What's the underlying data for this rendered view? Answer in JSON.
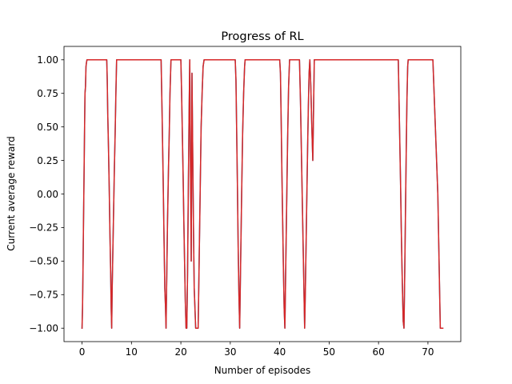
{
  "chart_data": {
    "type": "line",
    "title": "Progress of RL",
    "xlabel": "Number of episodes",
    "ylabel": "Current average reward",
    "xlim": [
      -3.65,
      76.65
    ],
    "ylim": [
      -1.1,
      1.1
    ],
    "grid": false,
    "xticks": [
      {
        "value": 0,
        "label": "0"
      },
      {
        "value": 10,
        "label": "10"
      },
      {
        "value": 20,
        "label": "20"
      },
      {
        "value": 30,
        "label": "30"
      },
      {
        "value": 40,
        "label": "40"
      },
      {
        "value": 50,
        "label": "50"
      },
      {
        "value": 60,
        "label": "60"
      },
      {
        "value": 70,
        "label": "70"
      }
    ],
    "yticks": [
      {
        "value": -1.0,
        "label": "−1.00"
      },
      {
        "value": -0.75,
        "label": "−0.75"
      },
      {
        "value": -0.5,
        "label": "−0.50"
      },
      {
        "value": -0.25,
        "label": "−0.25"
      },
      {
        "value": 0.0,
        "label": "0.00"
      },
      {
        "value": 0.25,
        "label": "0.25"
      },
      {
        "value": 0.5,
        "label": "0.50"
      },
      {
        "value": 0.75,
        "label": "0.75"
      },
      {
        "value": 1.0,
        "label": "1.00"
      }
    ],
    "series": [
      {
        "color": "#1f77b4",
        "x": [
          0,
          0.1,
          0.2,
          0.3,
          0.4,
          0.5,
          0.6,
          0.7,
          0.8,
          0.9,
          1,
          5,
          5.1,
          5.2,
          5.35,
          5.5,
          5.65,
          5.8,
          5.9,
          6,
          6.1,
          6.25,
          6.4,
          6.55,
          6.7,
          6.85,
          7,
          16,
          16.2,
          16.4,
          16.6,
          16.75,
          16.9,
          17,
          17.15,
          17.3,
          17.5,
          17.65,
          17.8,
          18,
          20,
          20.15,
          20.3,
          20.45,
          20.6,
          20.75,
          20.9,
          21.05,
          21.2,
          21.35,
          21.5,
          21.65,
          21.8,
          21.95,
          22.1,
          22.25,
          22.4,
          22.55,
          22.7,
          23,
          23.5,
          23.7,
          23.9,
          24.1,
          24.3,
          24.5,
          24.7,
          25,
          31,
          31.15,
          31.3,
          31.45,
          31.6,
          31.75,
          31.9,
          32.1,
          32.3,
          32.5,
          32.7,
          32.9,
          33,
          40,
          40.15,
          40.3,
          40.45,
          40.6,
          40.75,
          40.9,
          41.05,
          41.2,
          41.4,
          41.6,
          41.8,
          42,
          44,
          44.2,
          44.4,
          44.6,
          44.75,
          44.9,
          45.05,
          45.2,
          45.35,
          45.5,
          45.65,
          45.8,
          45.95,
          46.1,
          46.3,
          46.5,
          46.7,
          47,
          64,
          64.15,
          64.3,
          64.45,
          64.6,
          64.75,
          64.9,
          65,
          65.15,
          65.3,
          65.45,
          65.6,
          65.75,
          65.9,
          66,
          71,
          72,
          72.5,
          73
        ],
        "y": [
          -1,
          -0.85,
          -0.55,
          -0.2,
          0.12,
          0.45,
          0.75,
          0.8,
          0.95,
          0.98,
          1,
          1,
          0.85,
          0.6,
          0.35,
          0.05,
          -0.3,
          -0.6,
          -0.85,
          -1,
          -0.7,
          -0.4,
          -0.1,
          0.2,
          0.45,
          0.75,
          1,
          1,
          0.6,
          0.15,
          -0.35,
          -0.7,
          -0.85,
          -1,
          -0.6,
          -0.2,
          0.2,
          0.45,
          0.75,
          1,
          1,
          0.75,
          0.45,
          0.15,
          -0.2,
          -0.5,
          -0.8,
          -1,
          -1,
          -0.6,
          0.0,
          0.55,
          1,
          0.2,
          -0.5,
          0.9,
          0.3,
          -0.25,
          -0.7,
          -1,
          -1,
          -0.5,
          0.0,
          0.5,
          0.75,
          0.95,
          1,
          1,
          1,
          0.85,
          0.45,
          0.05,
          -0.4,
          -0.75,
          -1,
          -0.5,
          0.0,
          0.45,
          0.75,
          0.95,
          1,
          1,
          0.9,
          0.55,
          0.15,
          -0.2,
          -0.55,
          -0.85,
          -1,
          -0.6,
          -0.1,
          0.4,
          0.8,
          1,
          1,
          0.7,
          0.3,
          -0.1,
          -0.4,
          -0.7,
          -1,
          -0.7,
          -0.35,
          0.0,
          0.35,
          0.65,
          0.9,
          1,
          0.8,
          0.5,
          0.25,
          1,
          1,
          0.7,
          0.4,
          0.1,
          -0.25,
          -0.55,
          -0.8,
          -0.95,
          -1,
          -0.6,
          -0.15,
          0.3,
          0.7,
          0.95,
          1,
          1,
          0.0,
          -1,
          -1
        ],
        "stroke_width": 1.5
      },
      {
        "color": "#d62728",
        "x": [
          0,
          0.1,
          0.2,
          0.3,
          0.4,
          0.5,
          0.6,
          0.7,
          0.8,
          0.9,
          1,
          5,
          5.1,
          5.2,
          5.35,
          5.5,
          5.65,
          5.8,
          5.9,
          6,
          6.1,
          6.25,
          6.4,
          6.55,
          6.7,
          6.85,
          7,
          16,
          16.2,
          16.4,
          16.6,
          16.75,
          16.9,
          17,
          17.15,
          17.3,
          17.5,
          17.65,
          17.8,
          18,
          20,
          20.15,
          20.3,
          20.45,
          20.6,
          20.75,
          20.9,
          21.05,
          21.2,
          21.35,
          21.5,
          21.65,
          21.8,
          21.95,
          22.1,
          22.25,
          22.4,
          22.55,
          22.7,
          23,
          23.5,
          23.7,
          23.9,
          24.1,
          24.3,
          24.5,
          24.7,
          25,
          31,
          31.15,
          31.3,
          31.45,
          31.6,
          31.75,
          31.9,
          32.1,
          32.3,
          32.5,
          32.7,
          32.9,
          33,
          40,
          40.15,
          40.3,
          40.45,
          40.6,
          40.75,
          40.9,
          41.05,
          41.2,
          41.4,
          41.6,
          41.8,
          42,
          44,
          44.2,
          44.4,
          44.6,
          44.75,
          44.9,
          45.05,
          45.2,
          45.35,
          45.5,
          45.65,
          45.8,
          45.95,
          46.1,
          46.3,
          46.5,
          46.7,
          47,
          64,
          64.15,
          64.3,
          64.45,
          64.6,
          64.75,
          64.9,
          65,
          65.15,
          65.3,
          65.45,
          65.6,
          65.75,
          65.9,
          66,
          71,
          72,
          72.5,
          73
        ],
        "y": [
          -1,
          -0.85,
          -0.55,
          -0.2,
          0.12,
          0.45,
          0.75,
          0.8,
          0.95,
          0.98,
          1,
          1,
          0.85,
          0.6,
          0.35,
          0.05,
          -0.3,
          -0.6,
          -0.85,
          -1,
          -0.7,
          -0.4,
          -0.1,
          0.2,
          0.45,
          0.75,
          1,
          1,
          0.6,
          0.15,
          -0.35,
          -0.7,
          -0.85,
          -1,
          -0.6,
          -0.2,
          0.2,
          0.45,
          0.75,
          1,
          1,
          0.75,
          0.45,
          0.15,
          -0.2,
          -0.5,
          -0.8,
          -1,
          -1,
          -0.6,
          0.0,
          0.55,
          1,
          0.2,
          -0.5,
          0.9,
          0.3,
          -0.25,
          -0.7,
          -1,
          -1,
          -0.5,
          0.0,
          0.5,
          0.75,
          0.95,
          1,
          1,
          1,
          0.85,
          0.45,
          0.05,
          -0.4,
          -0.75,
          -1,
          -0.5,
          0.0,
          0.45,
          0.75,
          0.95,
          1,
          1,
          0.9,
          0.55,
          0.15,
          -0.2,
          -0.55,
          -0.85,
          -1,
          -0.6,
          -0.1,
          0.4,
          0.8,
          1,
          1,
          0.7,
          0.3,
          -0.1,
          -0.4,
          -0.7,
          -1,
          -0.7,
          -0.35,
          0.0,
          0.35,
          0.65,
          0.9,
          1,
          0.8,
          0.5,
          0.25,
          1,
          1,
          0.7,
          0.4,
          0.1,
          -0.25,
          -0.55,
          -0.8,
          -0.95,
          -1,
          -0.6,
          -0.15,
          0.3,
          0.7,
          0.95,
          1,
          1,
          0.0,
          -1,
          -1
        ],
        "stroke_width": 1.5
      }
    ]
  }
}
